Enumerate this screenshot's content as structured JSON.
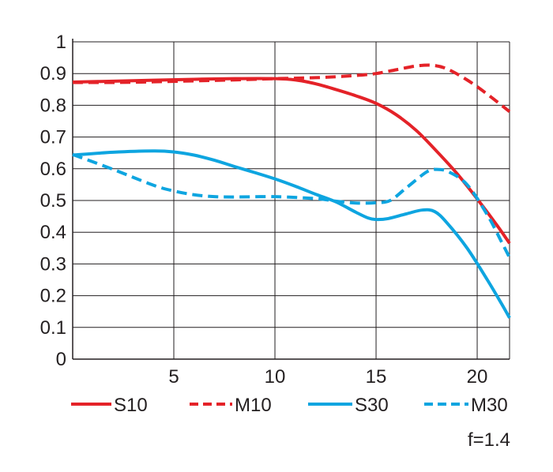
{
  "chart_data": {
    "type": "line",
    "xlim": [
      0,
      21.6
    ],
    "ylim": [
      0,
      1
    ],
    "x_ticks": [
      5,
      10,
      15,
      20
    ],
    "x_tick_labels": [
      "5",
      "10",
      "15",
      "20"
    ],
    "y_ticks": [
      0,
      0.1,
      0.2,
      0.3,
      0.4,
      0.5,
      0.6,
      0.7,
      0.8,
      0.9,
      1
    ],
    "y_tick_labels": [
      "0",
      "0.1",
      "0.2",
      "0.3",
      "0.4",
      "0.5",
      "0.6",
      "0.7",
      "0.8",
      "0.9",
      "1"
    ],
    "grid": true,
    "legend_position": "bottom",
    "annotation": "f=1.4",
    "series": [
      {
        "name": "S10",
        "color": "#e42228",
        "style": "solid",
        "points": [
          [
            0,
            0.873
          ],
          [
            2,
            0.876
          ],
          [
            4,
            0.879
          ],
          [
            6,
            0.882
          ],
          [
            8,
            0.884
          ],
          [
            10,
            0.884
          ],
          [
            11,
            0.88
          ],
          [
            12,
            0.868
          ],
          [
            13,
            0.85
          ],
          [
            14,
            0.83
          ],
          [
            15,
            0.806
          ],
          [
            16,
            0.77
          ],
          [
            17,
            0.72
          ],
          [
            18,
            0.655
          ],
          [
            19,
            0.585
          ],
          [
            20,
            0.505
          ],
          [
            21,
            0.42
          ],
          [
            21.6,
            0.365
          ]
        ]
      },
      {
        "name": "M10",
        "color": "#e42228",
        "style": "dashed",
        "points": [
          [
            0,
            0.872
          ],
          [
            2,
            0.872
          ],
          [
            4,
            0.874
          ],
          [
            6,
            0.877
          ],
          [
            8,
            0.88
          ],
          [
            10,
            0.884
          ],
          [
            12,
            0.887
          ],
          [
            13,
            0.89
          ],
          [
            14,
            0.894
          ],
          [
            15,
            0.9
          ],
          [
            16,
            0.912
          ],
          [
            17,
            0.924
          ],
          [
            17.8,
            0.926
          ],
          [
            18.5,
            0.915
          ],
          [
            19.5,
            0.88
          ],
          [
            20.5,
            0.835
          ],
          [
            21.6,
            0.78
          ]
        ]
      },
      {
        "name": "S30",
        "color": "#0ea5e0",
        "style": "solid",
        "points": [
          [
            0,
            0.643
          ],
          [
            2,
            0.652
          ],
          [
            4,
            0.656
          ],
          [
            5,
            0.653
          ],
          [
            6,
            0.643
          ],
          [
            7,
            0.627
          ],
          [
            8,
            0.607
          ],
          [
            9,
            0.588
          ],
          [
            10,
            0.568
          ],
          [
            11,
            0.545
          ],
          [
            12,
            0.52
          ],
          [
            13,
            0.496
          ],
          [
            14,
            0.463
          ],
          [
            14.6,
            0.445
          ],
          [
            15,
            0.44
          ],
          [
            15.6,
            0.443
          ],
          [
            16.5,
            0.458
          ],
          [
            17.3,
            0.47
          ],
          [
            17.9,
            0.465
          ],
          [
            18.5,
            0.43
          ],
          [
            19.5,
            0.35
          ],
          [
            20.5,
            0.25
          ],
          [
            21.2,
            0.175
          ],
          [
            21.6,
            0.13
          ]
        ]
      },
      {
        "name": "M30",
        "color": "#0ea5e0",
        "style": "dashed",
        "points": [
          [
            0,
            0.645
          ],
          [
            2,
            0.598
          ],
          [
            4,
            0.548
          ],
          [
            5,
            0.53
          ],
          [
            6,
            0.518
          ],
          [
            7,
            0.512
          ],
          [
            8,
            0.511
          ],
          [
            10,
            0.512
          ],
          [
            12,
            0.506
          ],
          [
            13,
            0.498
          ],
          [
            14,
            0.492
          ],
          [
            15,
            0.493
          ],
          [
            15.7,
            0.5
          ],
          [
            16.5,
            0.54
          ],
          [
            17.5,
            0.59
          ],
          [
            18,
            0.598
          ],
          [
            18.6,
            0.59
          ],
          [
            19.5,
            0.55
          ],
          [
            20.5,
            0.455
          ],
          [
            21.2,
            0.37
          ],
          [
            21.6,
            0.32
          ]
        ]
      }
    ]
  }
}
